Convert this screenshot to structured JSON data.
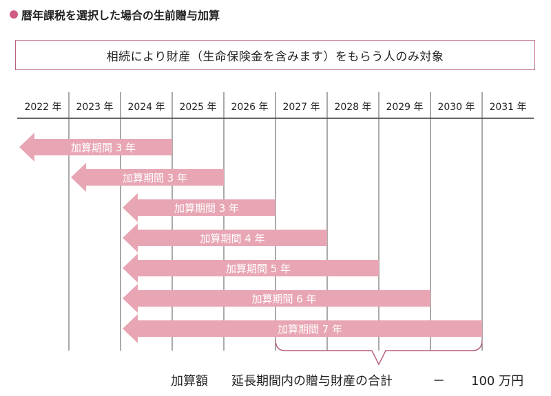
{
  "heading": "暦年課税を選択した場合の生前贈与加算",
  "banner": "相続により財産（生命保険金を含みます）をもらう人のみ対象",
  "years": [
    "2022 年",
    "2023 年",
    "2024 年",
    "2025 年",
    "2026 年",
    "2027 年",
    "2028 年",
    "2029 年",
    "2030 年",
    "2031 年"
  ],
  "arrows": [
    {
      "label": "加算期間 3 年",
      "start_col": 0,
      "end_col": 3
    },
    {
      "label": "加算期間 3 年",
      "start_col": 1,
      "end_col": 4
    },
    {
      "label": "加算期間 3 年",
      "start_col": 2,
      "end_col": 5
    },
    {
      "label": "加算期間 4 年",
      "start_col": 2,
      "end_col": 6
    },
    {
      "label": "加算期間 5 年",
      "start_col": 2,
      "end_col": 7
    },
    {
      "label": "加算期間 6 年",
      "start_col": 2,
      "end_col": 8
    },
    {
      "label": "加算期間 7 年",
      "start_col": 2,
      "end_col": 9
    }
  ],
  "brace": {
    "start_col": 5,
    "end_col": 9
  },
  "footer": {
    "label": "加算額",
    "description": "延長期間内の贈与財産の合計",
    "dash": "－",
    "amount": "100 万円"
  },
  "colors": {
    "arrow": "#e8a6b4",
    "accent": "#b8617a",
    "dot": "#d05a85"
  }
}
